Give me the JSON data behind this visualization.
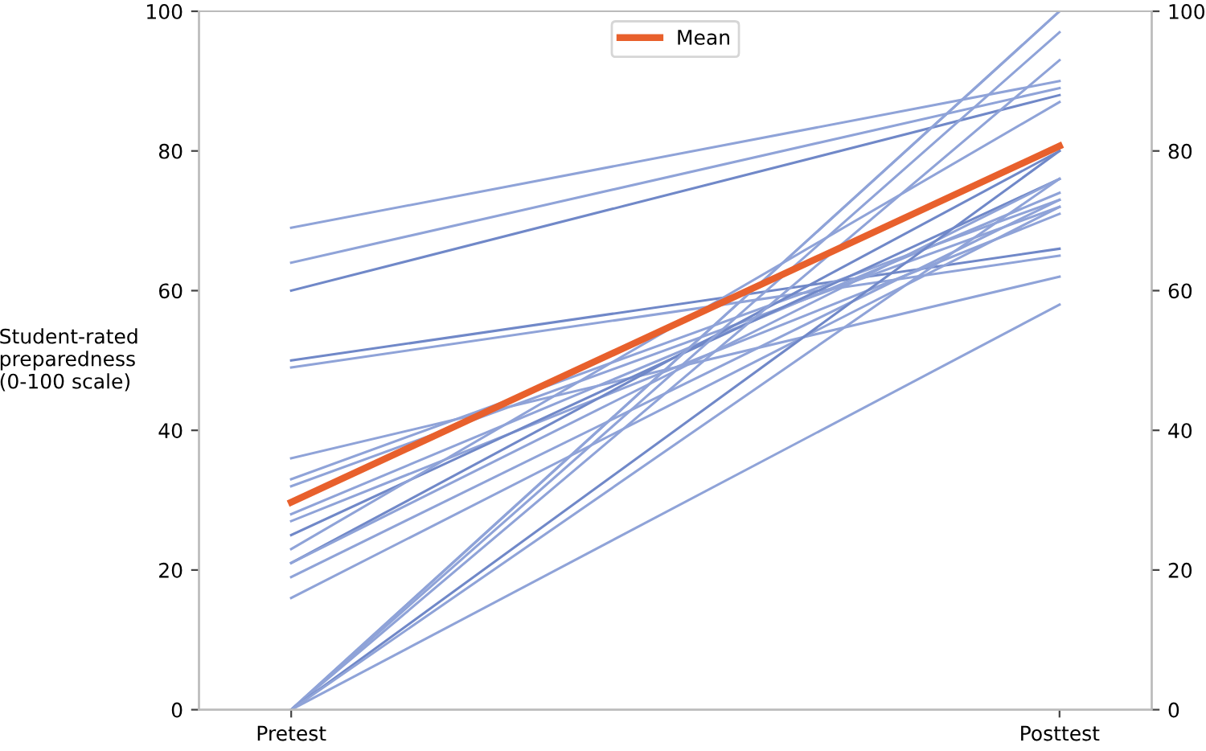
{
  "chart_data": {
    "type": "line",
    "ylabel": "Student-rated\npreparedness\n(0-100 scale)",
    "categories": [
      "Pretest",
      "Posttest"
    ],
    "ylim": [
      0,
      100
    ],
    "yticks": [
      0,
      20,
      40,
      60,
      80,
      100
    ],
    "y2lim": [
      0,
      100
    ],
    "y2ticks": [
      0,
      20,
      40,
      60,
      80,
      100
    ],
    "grid": false,
    "legend": "top",
    "marker": "none",
    "line_style": "solid",
    "series": [
      {
        "color": "#8fa3d8",
        "values": [
          69,
          90
        ]
      },
      {
        "color": "#8fa3d8",
        "values": [
          64,
          89
        ]
      },
      {
        "color": "#7088c8",
        "values": [
          60,
          88
        ]
      },
      {
        "color": "#7088c8",
        "values": [
          50,
          66
        ]
      },
      {
        "color": "#8fa3d8",
        "values": [
          49,
          65
        ]
      },
      {
        "color": "#8fa3d8",
        "values": [
          36,
          62
        ]
      },
      {
        "color": "#8fa3d8",
        "values": [
          33,
          73
        ]
      },
      {
        "color": "#8fa3d8",
        "values": [
          32,
          72
        ]
      },
      {
        "color": "#8fa3d8",
        "values": [
          28,
          74
        ]
      },
      {
        "color": "#8fa3d8",
        "values": [
          27,
          71
        ]
      },
      {
        "color": "#7088c8",
        "values": [
          25,
          76
        ]
      },
      {
        "color": "#8fa3d8",
        "values": [
          23,
          87
        ]
      },
      {
        "color": "#7088c8",
        "values": [
          21,
          80
        ]
      },
      {
        "color": "#8fa3d8",
        "values": [
          21,
          76
        ]
      },
      {
        "color": "#8fa3d8",
        "values": [
          19,
          73
        ]
      },
      {
        "color": "#8fa3d8",
        "values": [
          16,
          72
        ]
      },
      {
        "color": "#8fa3d8",
        "values": [
          0,
          100
        ]
      },
      {
        "color": "#8fa3d8",
        "values": [
          0,
          100
        ]
      },
      {
        "color": "#8fa3d8",
        "values": [
          0,
          97
        ]
      },
      {
        "color": "#8fa3d8",
        "values": [
          0,
          93
        ]
      },
      {
        "color": "#7088c8",
        "values": [
          0,
          80
        ]
      },
      {
        "color": "#8fa3d8",
        "values": [
          0,
          76
        ]
      },
      {
        "color": "#8fa3d8",
        "values": [
          0,
          58
        ]
      },
      {
        "name": "Mean",
        "color": "#e8602c",
        "values": [
          29.7,
          80.7
        ]
      }
    ]
  }
}
